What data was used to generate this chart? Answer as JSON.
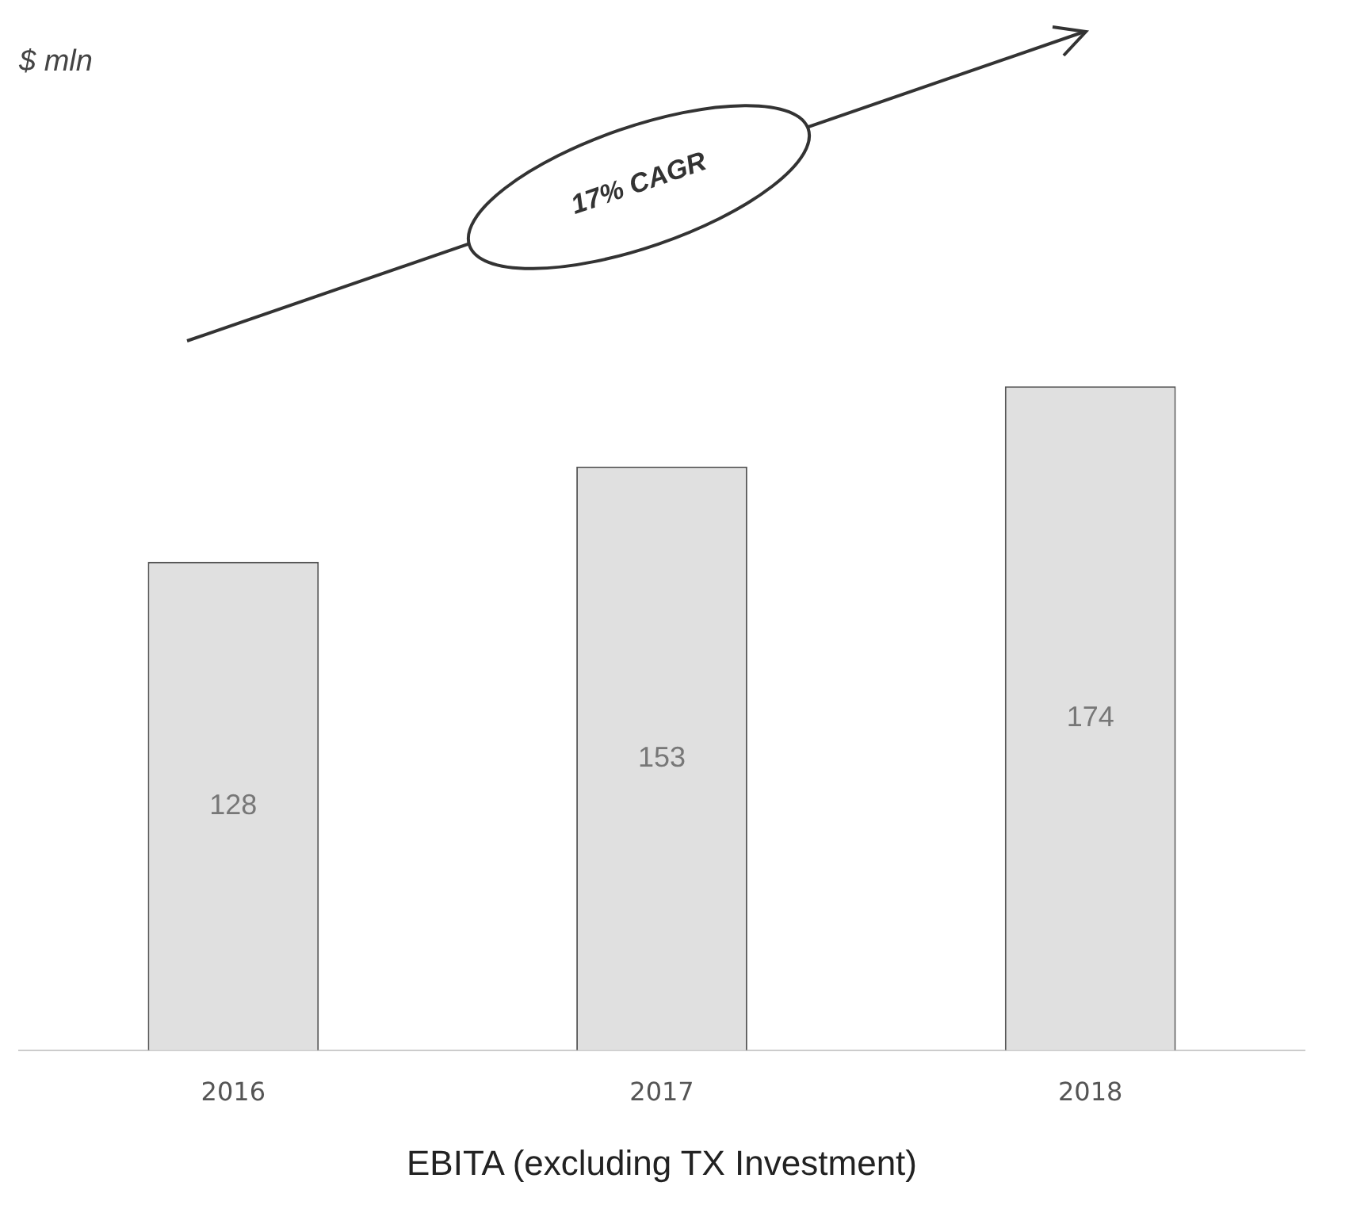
{
  "chart_data": {
    "type": "bar",
    "title": "$ mln",
    "xlabel": "EBITA (excluding TX Investment)",
    "categories": [
      "2016",
      "2017",
      "2018"
    ],
    "values": [
      128,
      153,
      174
    ],
    "color": "#e0e0e0",
    "data_labels": true,
    "grid": false,
    "legend": false,
    "annotations": [
      "17% CAGR"
    ]
  }
}
